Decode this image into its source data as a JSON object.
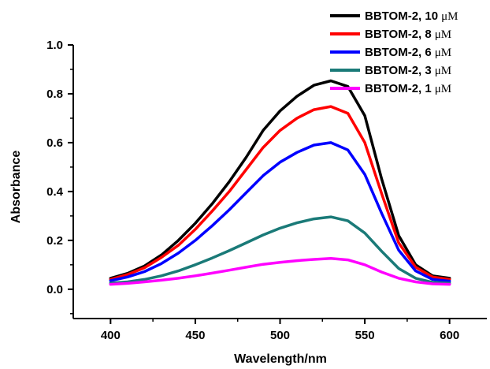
{
  "chart_data": {
    "type": "line",
    "title": "",
    "xlabel": "Wavelength/nm",
    "ylabel": "Absorbance",
    "xlim": [
      378,
      622
    ],
    "ylim": [
      -0.12,
      1.0
    ],
    "xticks": [
      400,
      450,
      500,
      550,
      600
    ],
    "xtick_labels": [
      "400",
      "450",
      "500",
      "550",
      "600"
    ],
    "yticks": [
      0.0,
      0.2,
      0.4,
      0.6,
      0.8,
      1.0
    ],
    "ytick_labels": [
      "0.0",
      "0.2",
      "0.4",
      "0.6",
      "0.8",
      "1.0"
    ],
    "grid": false,
    "legend_position": "top-right",
    "x": [
      400,
      410,
      420,
      430,
      440,
      450,
      460,
      470,
      480,
      490,
      500,
      510,
      520,
      530,
      540,
      550,
      560,
      570,
      580,
      590,
      600
    ],
    "series": [
      {
        "name": "BBTOM-2, 10",
        "unit": "μM",
        "color": "#000000",
        "values": [
          0.045,
          0.065,
          0.095,
          0.14,
          0.2,
          0.27,
          0.35,
          0.44,
          0.54,
          0.65,
          0.73,
          0.79,
          0.835,
          0.853,
          0.83,
          0.71,
          0.45,
          0.22,
          0.1,
          0.055,
          0.045
        ]
      },
      {
        "name": "BBTOM-2, 8",
        "unit": "μM",
        "color": "#ff0000",
        "values": [
          0.04,
          0.06,
          0.088,
          0.13,
          0.18,
          0.245,
          0.32,
          0.4,
          0.49,
          0.58,
          0.65,
          0.7,
          0.735,
          0.748,
          0.72,
          0.6,
          0.39,
          0.19,
          0.09,
          0.05,
          0.04
        ]
      },
      {
        "name": "BBTOM-2, 6",
        "unit": "μM",
        "color": "#0000ff",
        "values": [
          0.035,
          0.05,
          0.072,
          0.105,
          0.148,
          0.2,
          0.26,
          0.325,
          0.395,
          0.465,
          0.52,
          0.56,
          0.59,
          0.6,
          0.57,
          0.47,
          0.31,
          0.16,
          0.075,
          0.04,
          0.033
        ]
      },
      {
        "name": "BBTOM-2, 3",
        "unit": "μM",
        "color": "#1a7a78",
        "values": [
          0.025,
          0.03,
          0.04,
          0.055,
          0.075,
          0.1,
          0.128,
          0.158,
          0.19,
          0.222,
          0.25,
          0.272,
          0.288,
          0.296,
          0.28,
          0.23,
          0.155,
          0.085,
          0.045,
          0.028,
          0.025
        ]
      },
      {
        "name": "BBTOM-2, 1",
        "unit": "μM",
        "color": "#ff00ff",
        "values": [
          0.02,
          0.024,
          0.03,
          0.037,
          0.045,
          0.055,
          0.066,
          0.078,
          0.09,
          0.102,
          0.11,
          0.117,
          0.122,
          0.126,
          0.12,
          0.1,
          0.07,
          0.045,
          0.03,
          0.022,
          0.02
        ]
      }
    ]
  }
}
